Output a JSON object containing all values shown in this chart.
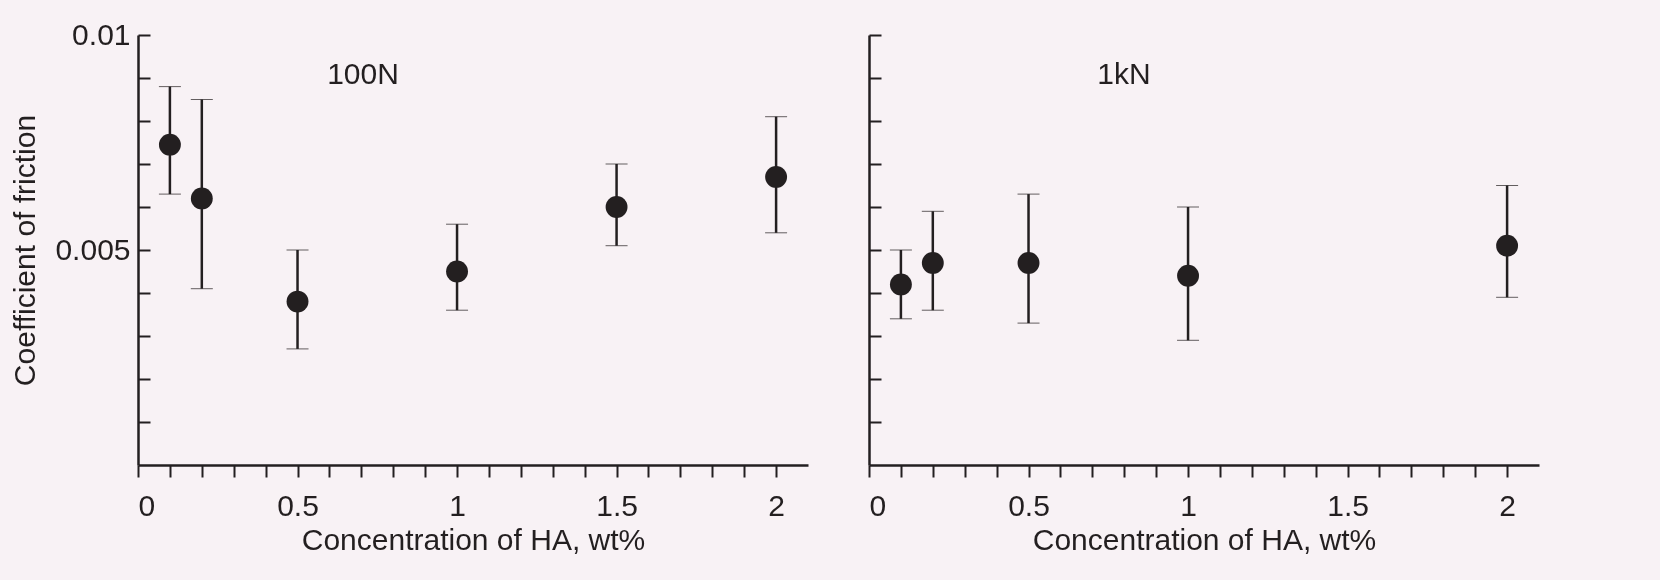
{
  "chart_data": [
    {
      "type": "scatter",
      "annotations": [
        "100N"
      ],
      "xlabel": "Concentration of HA, wt%",
      "ylabel": "Coefficient of friction",
      "x": [
        0.1,
        0.2,
        0.5,
        1,
        1.5,
        2
      ],
      "series": [
        {
          "color": "#231f20",
          "values": [
            0.00745,
            0.0062,
            0.0038,
            0.0045,
            0.006,
            0.0067
          ],
          "errors": [
            [
              0.0063,
              0.0088
            ],
            [
              0.0041,
              0.0085
            ],
            [
              0.0027,
              0.005
            ],
            [
              0.0036,
              0.0056
            ],
            [
              0.0051,
              0.007
            ],
            [
              0.0054,
              0.0081
            ]
          ]
        }
      ],
      "xlim": [
        0,
        2.1
      ],
      "ylim": [
        0,
        0.01
      ],
      "xticks": [
        0,
        {
          "value": 0.1,
          "label": null
        },
        {
          "value": 0.2,
          "label": null
        },
        {
          "value": 0.3,
          "label": null
        },
        {
          "value": 0.4,
          "label": null
        },
        0.5,
        {
          "value": 0.6,
          "label": null
        },
        {
          "value": 0.7,
          "label": null
        },
        {
          "value": 0.8,
          "label": null
        },
        {
          "value": 0.9,
          "label": null
        },
        1,
        {
          "value": 1.1,
          "label": null
        },
        {
          "value": 1.2,
          "label": null
        },
        {
          "value": 1.3,
          "label": null
        },
        {
          "value": 1.4,
          "label": null
        },
        1.5,
        {
          "value": 1.6,
          "label": null
        },
        {
          "value": 1.7,
          "label": null
        },
        {
          "value": 1.8,
          "label": null
        },
        {
          "value": 1.9,
          "label": null
        },
        2
      ],
      "yticks": [
        {
          "value": 0.001,
          "label": null
        },
        {
          "value": 0.002,
          "label": null
        },
        {
          "value": 0.003,
          "label": null
        },
        {
          "value": 0.004,
          "label": null
        },
        0.005,
        {
          "value": 0.006,
          "label": null
        },
        {
          "value": 0.007,
          "label": null
        },
        {
          "value": 0.008,
          "label": null
        },
        {
          "value": 0.009,
          "label": null
        },
        0.01
      ],
      "marker": "circle"
    },
    {
      "type": "scatter",
      "annotations": [
        "1kN"
      ],
      "xlabel": "Concentration of HA, wt%",
      "x": [
        0.1,
        0.2,
        0.5,
        1,
        2
      ],
      "series": [
        {
          "color": "#231f20",
          "values": [
            0.0042,
            0.0047,
            0.0047,
            0.0044,
            0.0051
          ],
          "errors": [
            [
              0.0034,
              0.005
            ],
            [
              0.0036,
              0.0059
            ],
            [
              0.0033,
              0.0063
            ],
            [
              0.0029,
              0.006
            ],
            [
              0.0039,
              0.0065
            ]
          ]
        }
      ],
      "xlim": [
        0,
        2.1
      ],
      "ylim": [
        0,
        0.01
      ],
      "xticks": [
        0,
        {
          "value": 0.1,
          "label": null
        },
        {
          "value": 0.2,
          "label": null
        },
        {
          "value": 0.3,
          "label": null
        },
        {
          "value": 0.4,
          "label": null
        },
        0.5,
        {
          "value": 0.6,
          "label": null
        },
        {
          "value": 0.7,
          "label": null
        },
        {
          "value": 0.8,
          "label": null
        },
        {
          "value": 0.9,
          "label": null
        },
        1,
        {
          "value": 1.1,
          "label": null
        },
        {
          "value": 1.2,
          "label": null
        },
        {
          "value": 1.3,
          "label": null
        },
        {
          "value": 1.4,
          "label": null
        },
        1.5,
        {
          "value": 1.6,
          "label": null
        },
        {
          "value": 1.7,
          "label": null
        },
        {
          "value": 1.8,
          "label": null
        },
        {
          "value": 1.9,
          "label": null
        },
        2
      ],
      "yticks": [
        {
          "value": 0.001,
          "label": null
        },
        {
          "value": 0.002,
          "label": null
        },
        {
          "value": 0.003,
          "label": null
        },
        {
          "value": 0.004,
          "label": null
        },
        {
          "value": 0.005,
          "label": null
        },
        {
          "value": 0.006,
          "label": null
        },
        {
          "value": 0.007,
          "label": null
        },
        {
          "value": 0.008,
          "label": null
        },
        {
          "value": 0.009,
          "label": null
        },
        {
          "value": 0.01,
          "label": null
        }
      ],
      "tick_labels": "x",
      "marker": "circle"
    }
  ]
}
